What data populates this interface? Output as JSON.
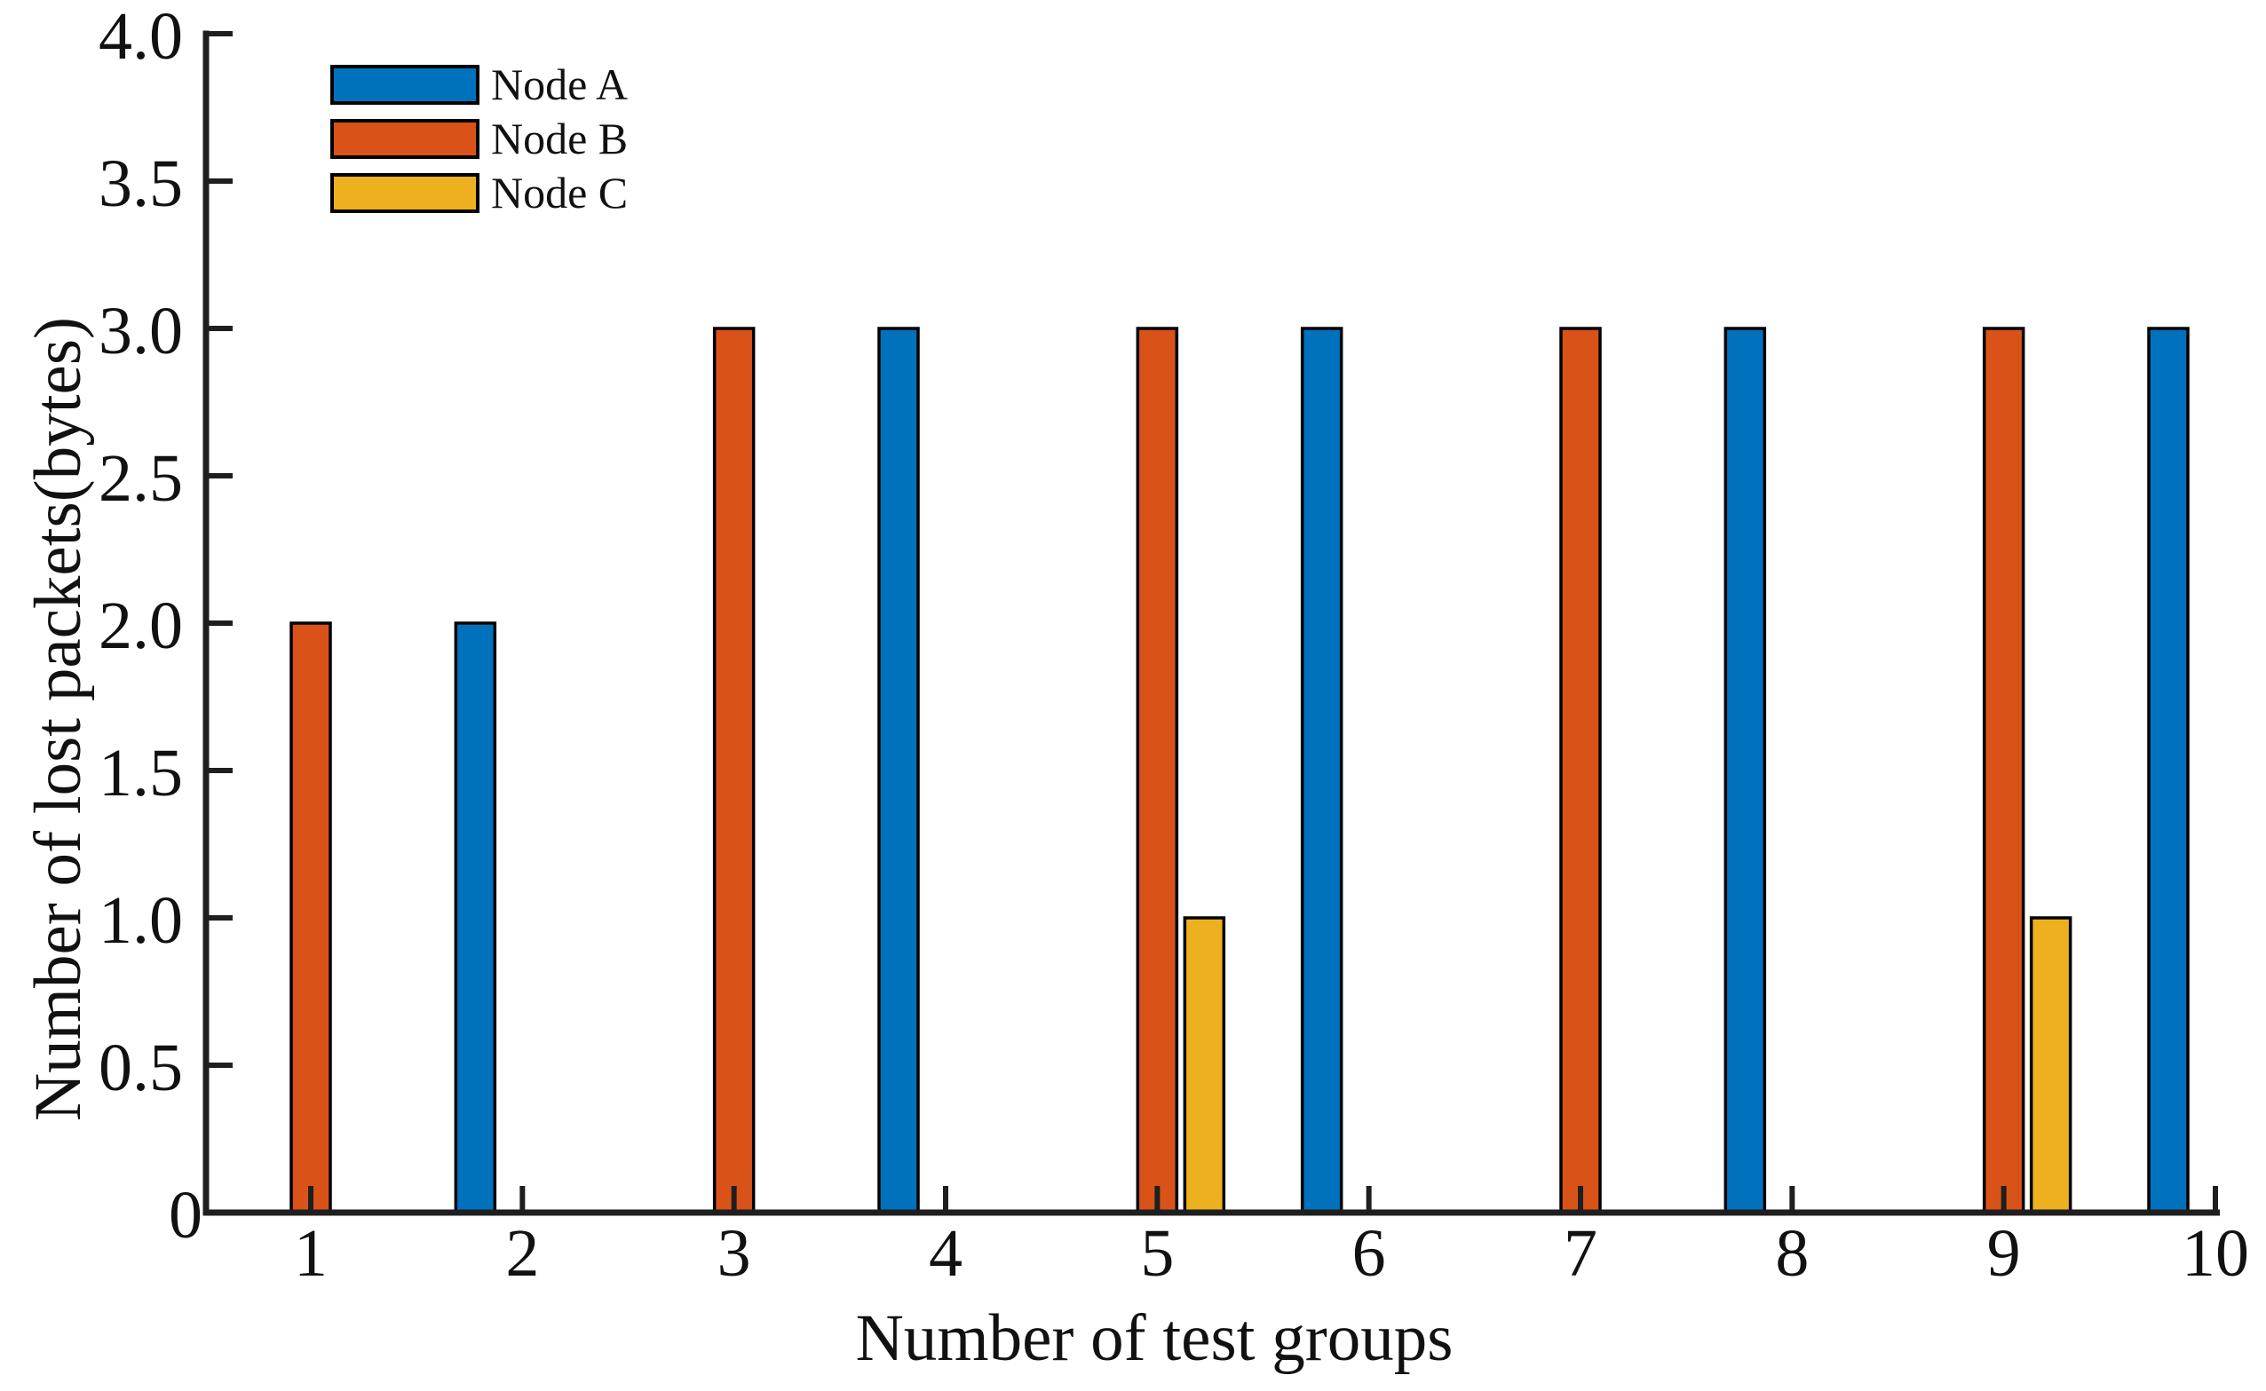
{
  "chart_data": {
    "type": "bar",
    "title": "",
    "xlabel": "Number of test groups",
    "ylabel": "Number of lost packets(bytes)",
    "categories": [
      "1",
      "2",
      "3",
      "4",
      "5",
      "6",
      "7",
      "8",
      "9",
      "10"
    ],
    "series": [
      {
        "name": "Node A",
        "color": "#0072BD",
        "values": [
          0,
          2,
          0,
          3,
          0,
          3,
          0,
          3,
          0,
          3
        ]
      },
      {
        "name": "Node B",
        "color": "#D95319",
        "values": [
          2,
          0,
          3,
          0,
          3,
          0,
          3,
          0,
          3,
          0
        ]
      },
      {
        "name": "Node C",
        "color": "#EDB120",
        "values": [
          0,
          0,
          0,
          0,
          1,
          0,
          0,
          0,
          1,
          0
        ]
      }
    ],
    "ylim": [
      0,
      4
    ],
    "yticks": [
      0,
      0.5,
      1,
      1.5,
      2,
      2.5,
      3,
      3.5,
      4
    ],
    "ytick_labels": [
      "0",
      "0.5",
      "1.0",
      "1.5",
      "2.0",
      "2.5",
      "3.0",
      "3.5",
      "4.0"
    ],
    "grid": false,
    "legend_position": "top-left",
    "bar_outline_color": "#000000",
    "axis_color": "#1f1f1f",
    "background_color": "#ffffff"
  }
}
